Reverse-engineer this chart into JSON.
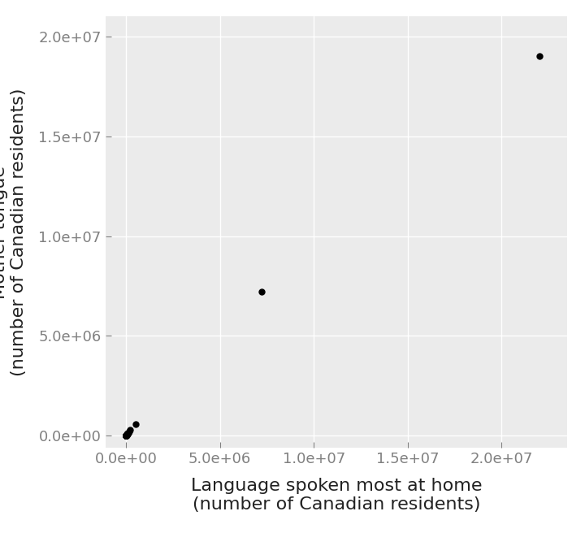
{
  "x": [
    22000000,
    7200000,
    500000,
    200000,
    150000,
    120000,
    100000,
    80000,
    60000,
    50000,
    40000,
    35000,
    30000,
    25000,
    20000,
    18000,
    15000,
    12000,
    10000,
    8000,
    6000,
    5000,
    4000,
    3000,
    2000,
    1000,
    500
  ],
  "y": [
    19000000,
    7200000,
    600000,
    300000,
    200000,
    150000,
    120000,
    100000,
    80000,
    60000,
    50000,
    40000,
    35000,
    28000,
    22000,
    19000,
    16000,
    13000,
    10000,
    9000,
    7000,
    5500,
    4500,
    3500,
    2500,
    1200,
    600
  ],
  "xlabel": "Language spoken most at home\n(number of Canadian residents)",
  "ylabel": "Mother tongue\n(number of Canadian residents)",
  "background_color": "#EBEBEB",
  "point_color": "#000000",
  "point_size": 25,
  "xlim": [
    -1100000,
    23500000
  ],
  "ylim": [
    -600000,
    21000000
  ],
  "xticks": [
    0,
    5000000,
    10000000,
    15000000,
    20000000
  ],
  "yticks": [
    0,
    5000000,
    10000000,
    15000000,
    20000000
  ],
  "grid_color": "#FFFFFF",
  "xlabel_fontsize": 16,
  "ylabel_fontsize": 16,
  "tick_fontsize": 13,
  "tick_color": "#808080",
  "label_color": "#222222"
}
